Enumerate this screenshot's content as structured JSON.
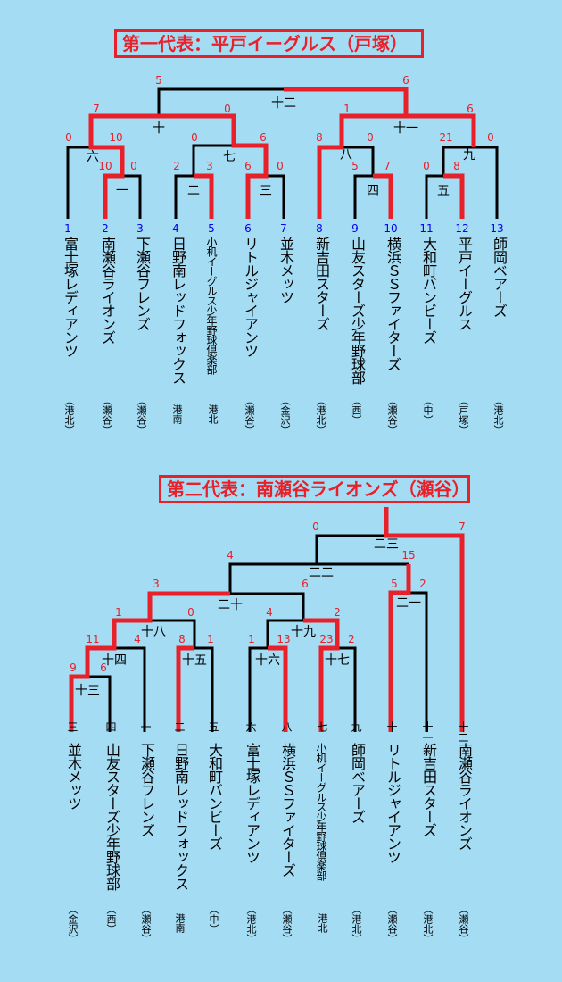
{
  "colors": {
    "background": "#a4dcf4",
    "winner_line": "#e8202a",
    "line": "#000000",
    "score": "#e8202a",
    "seed_number": "#0000ee"
  },
  "bracket1": {
    "title": "第一代表：平戸イーグルス（戸塚）",
    "teams": [
      {
        "seed": "1",
        "name": "富士塚レディアンツ",
        "area": "（港北）"
      },
      {
        "seed": "2",
        "name": "南瀬谷ライオンズ",
        "area": "（瀬谷）"
      },
      {
        "seed": "3",
        "name": "下瀬谷フレンズ",
        "area": "（瀬谷）"
      },
      {
        "seed": "4",
        "name": "日野南レッドフォックス",
        "area": "港南"
      },
      {
        "seed": "5",
        "name": "小机イーグルス少年野球倶楽部",
        "area": "港北"
      },
      {
        "seed": "6",
        "name": "リトルジャイアンツ",
        "area": "（瀬谷）"
      },
      {
        "seed": "7",
        "name": "並木メッツ",
        "area": "（金沢）"
      },
      {
        "seed": "8",
        "name": "新吉田スターズ",
        "area": "（港北）"
      },
      {
        "seed": "9",
        "name": "山友スターズ少年野球部",
        "area": "（西）"
      },
      {
        "seed": "10",
        "name": "横浜ＳＳファイターズ",
        "area": "（瀬谷）"
      },
      {
        "seed": "11",
        "name": "大和町バンビーズ",
        "area": "（中）"
      },
      {
        "seed": "12",
        "name": "平戸イーグルス",
        "area": "（戸塚）"
      },
      {
        "seed": "13",
        "name": "師岡ベアーズ",
        "area": "（港北）"
      }
    ],
    "games": [
      "一",
      "二",
      "三",
      "四",
      "五",
      "六",
      "七",
      "八",
      "九",
      "十",
      "十一",
      "十二"
    ],
    "scores": [
      "5",
      "6",
      "7",
      "0",
      "1",
      "6",
      "0",
      "10",
      "0",
      "6",
      "8",
      "0",
      "21",
      "0",
      "10",
      "0",
      "2",
      "3",
      "6",
      "0",
      "5",
      "7",
      "0",
      "8"
    ]
  },
  "bracket2": {
    "title": "第二代表：南瀬谷ライオンズ（瀬谷）",
    "teams": [
      {
        "seed": "三",
        "name": "並木メッツ",
        "area": "（金沢）"
      },
      {
        "seed": "四",
        "name": "山友スターズ少年野球部",
        "area": "（西）"
      },
      {
        "seed": "一",
        "name": "下瀬谷フレンズ",
        "area": "（瀬谷）"
      },
      {
        "seed": "二",
        "name": "日野南レッドフォックス",
        "area": "港南"
      },
      {
        "seed": "五",
        "name": "大和町バンビーズ",
        "area": "（中）"
      },
      {
        "seed": "六",
        "name": "富士塚レディアンツ",
        "area": "（港北）"
      },
      {
        "seed": "八",
        "name": "横浜ＳＳファイターズ",
        "area": "（瀬谷）"
      },
      {
        "seed": "七",
        "name": "小机イーグルス少年野球倶楽部",
        "area": "港北"
      },
      {
        "seed": "九",
        "name": "師岡ベアーズ",
        "area": "（港北）"
      },
      {
        "seed": "十",
        "name": "リトルジャイアンツ",
        "area": "（瀬谷）"
      },
      {
        "seed": "十一",
        "name": "新吉田スターズ",
        "area": "（港北）"
      },
      {
        "seed": "十二",
        "name": "南瀬谷ライオンズ",
        "area": "（瀬谷）"
      }
    ],
    "games": [
      "十三",
      "十四",
      "十五",
      "十六",
      "十七",
      "十八",
      "十九",
      "二十",
      "二一",
      "二二",
      "二三"
    ],
    "scores": [
      "0",
      "7",
      "4",
      "15",
      "5",
      "2",
      "3",
      "6",
      "1",
      "0",
      "4",
      "2",
      "11",
      "4",
      "8",
      "1",
      "1",
      "13",
      "23",
      "2",
      "9",
      "6"
    ]
  }
}
